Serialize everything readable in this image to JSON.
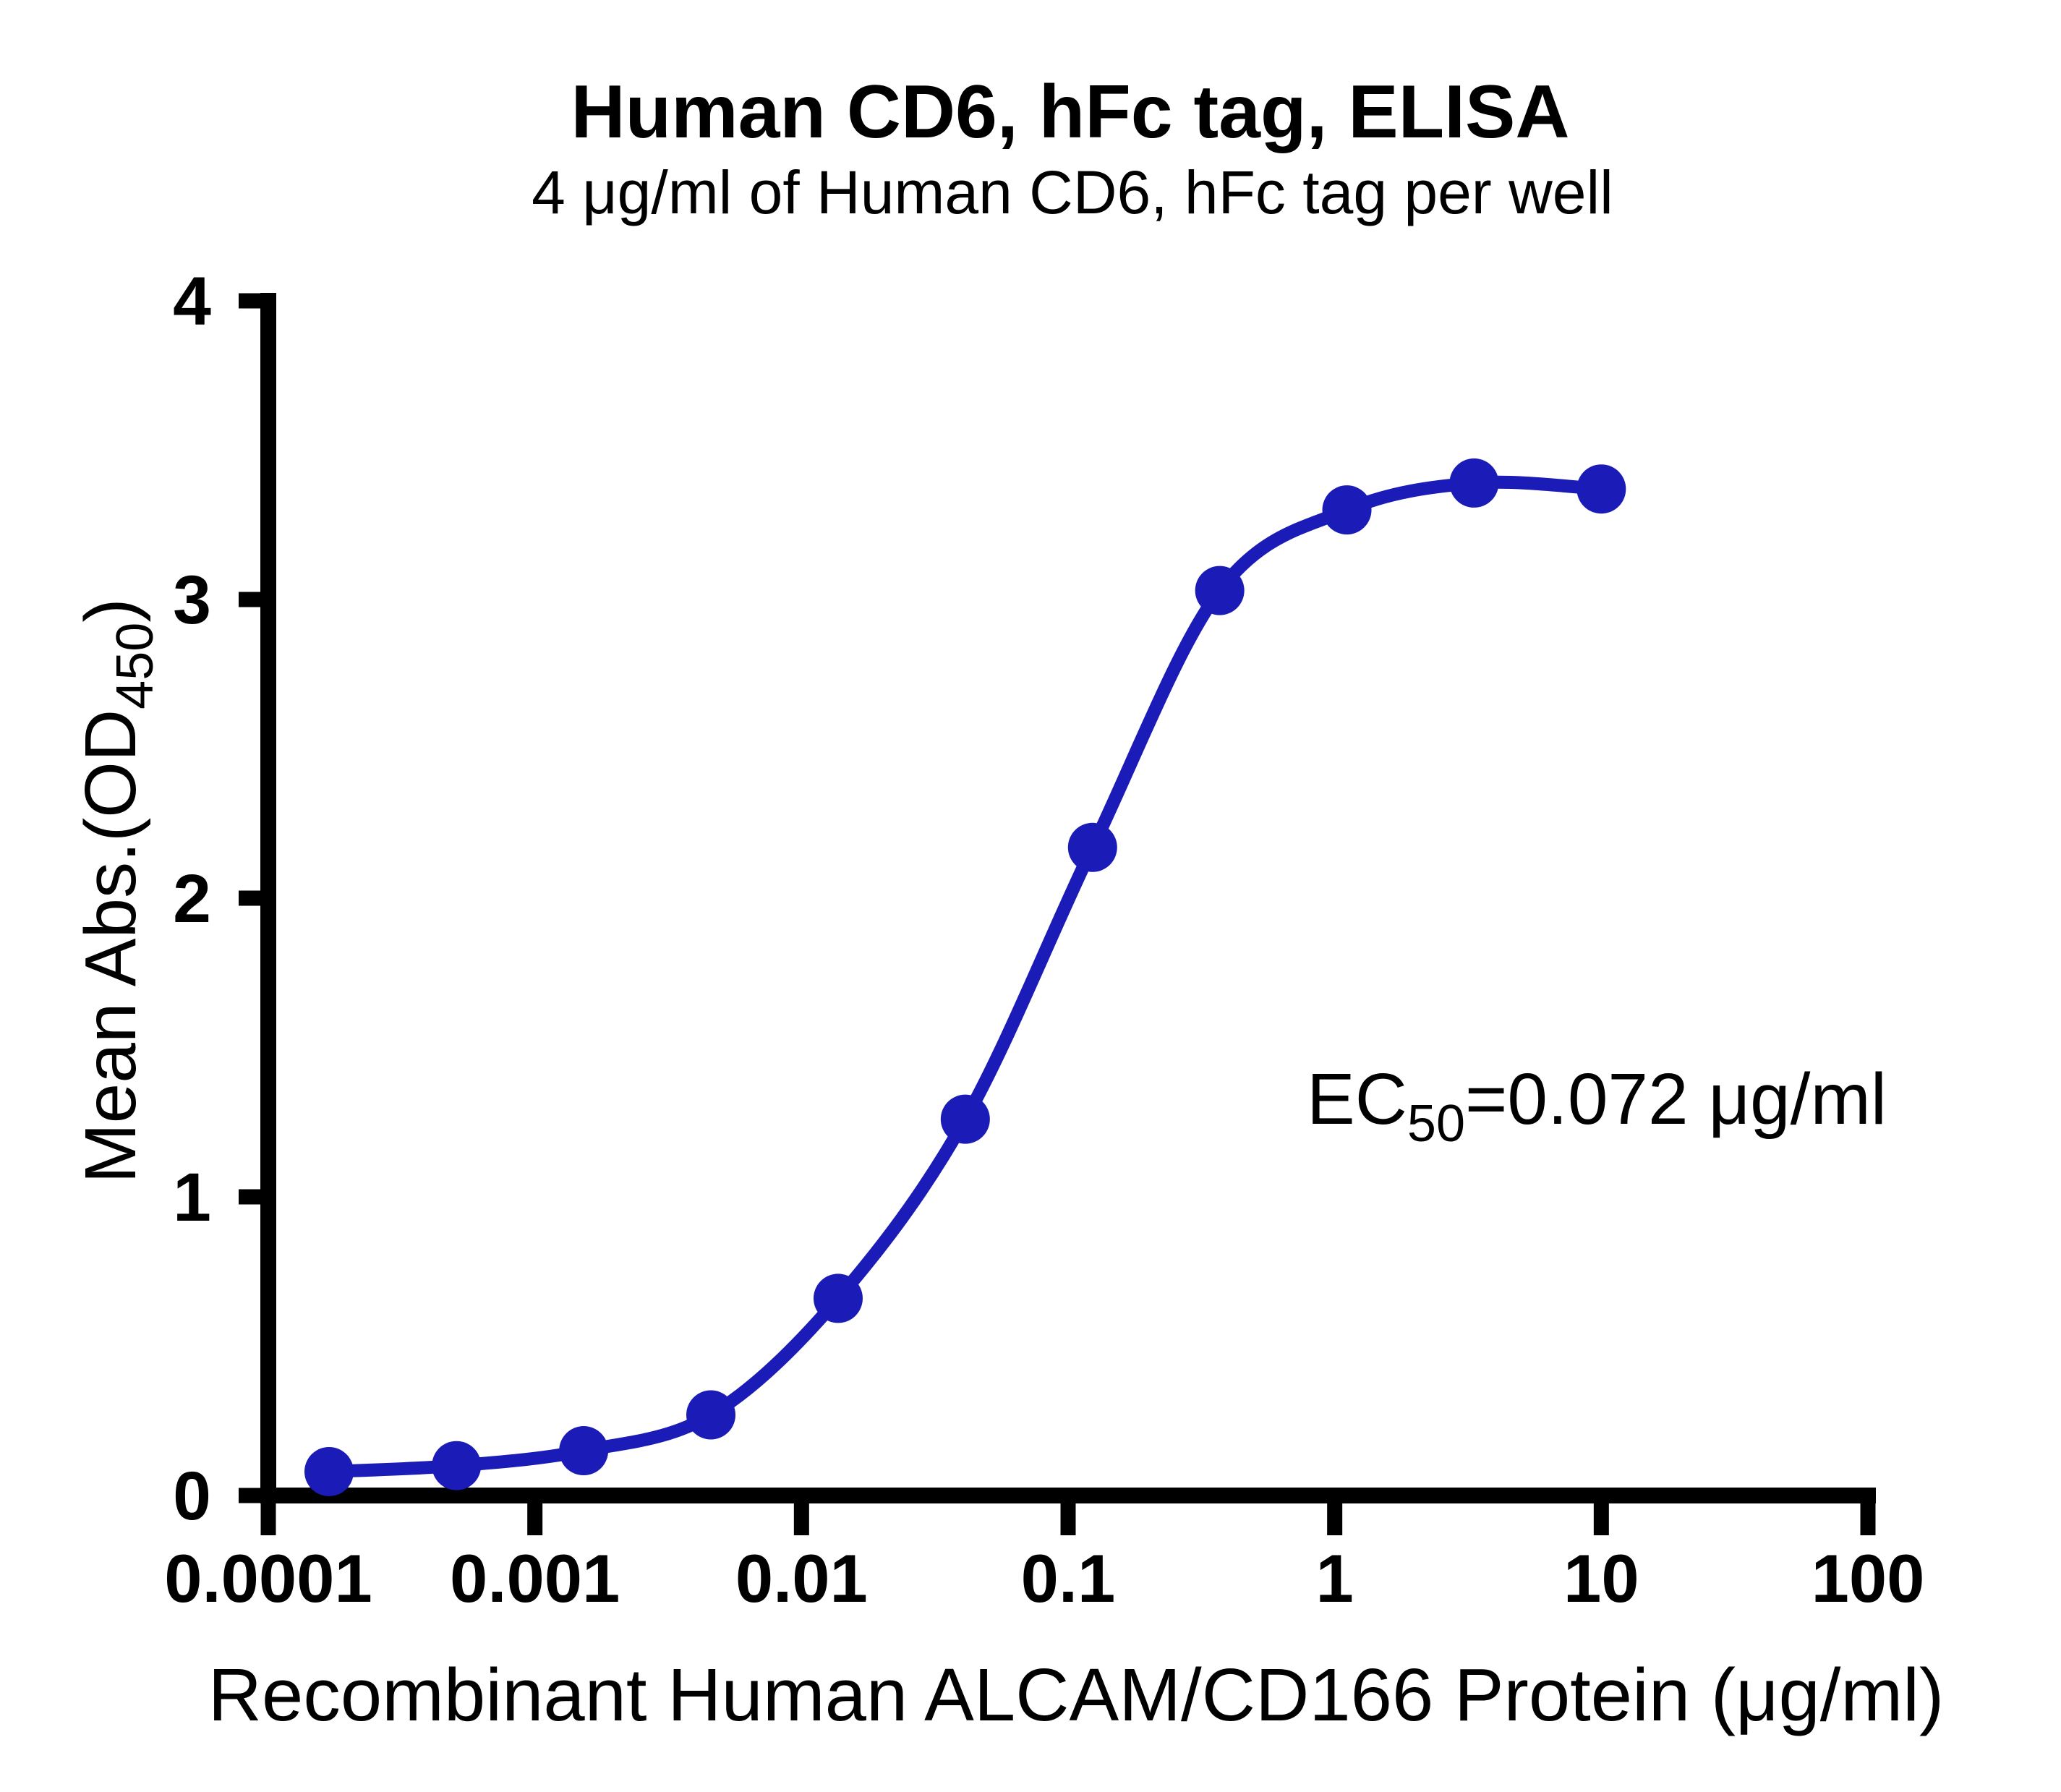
{
  "chart_data": {
    "type": "scatter",
    "title": "Human CD6, hFc tag, ELISA",
    "subtitle": "4 μg/ml of Human CD6, hFc tag per well",
    "xlabel": "Recombinant Human ALCAM/CD166 Protein (μg/ml)",
    "ylabel": {
      "pre": "Mean Abs.(OD",
      "sub": "450",
      "post": ")"
    },
    "annotation": {
      "pre": "EC",
      "sub": "50",
      "post": "=0.072 μg/ml"
    },
    "x_scale": "log",
    "xlim": [
      0.0001,
      100
    ],
    "ylim": [
      0,
      4
    ],
    "grid": false,
    "legend_position": "none",
    "axis_color": "#000000",
    "x_ticks": [
      {
        "v": 0.0001,
        "label": "0.0001"
      },
      {
        "v": 0.001,
        "label": "0.001"
      },
      {
        "v": 0.01,
        "label": "0.01"
      },
      {
        "v": 0.1,
        "label": "0.1"
      },
      {
        "v": 1,
        "label": "1"
      },
      {
        "v": 10,
        "label": "10"
      },
      {
        "v": 100,
        "label": "100"
      }
    ],
    "y_ticks": [
      {
        "v": 0,
        "label": "0"
      },
      {
        "v": 1,
        "label": "1"
      },
      {
        "v": 2,
        "label": "2"
      },
      {
        "v": 3,
        "label": "3"
      },
      {
        "v": 4,
        "label": "4"
      }
    ],
    "series": [
      {
        "name": "Human CD6, hFc tag",
        "color": "#1b1bb8",
        "marker": "circle",
        "points": [
          {
            "x": 0.000169,
            "y": 0.08
          },
          {
            "x": 0.000508,
            "y": 0.1
          },
          {
            "x": 0.001524,
            "y": 0.15
          },
          {
            "x": 0.004572,
            "y": 0.27
          },
          {
            "x": 0.01372,
            "y": 0.66
          },
          {
            "x": 0.04115,
            "y": 1.26
          },
          {
            "x": 0.1235,
            "y": 2.17
          },
          {
            "x": 0.3704,
            "y": 3.03
          },
          {
            "x": 1.111,
            "y": 3.3
          },
          {
            "x": 3.333,
            "y": 3.39
          },
          {
            "x": 10,
            "y": 3.37
          }
        ]
      }
    ]
  }
}
